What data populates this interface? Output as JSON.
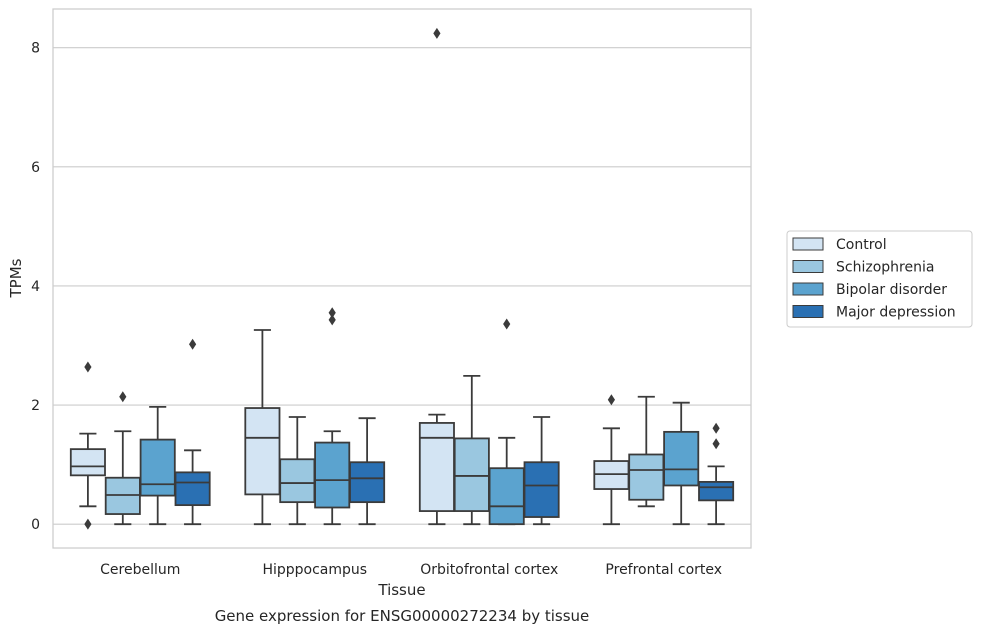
{
  "caption": "Gene expression for ENSG00000272234 by tissue",
  "chart_data": {
    "type": "box",
    "xlabel": "Tissue",
    "ylabel": "TPMs",
    "ylim": [
      -0.4,
      8.65
    ],
    "yticks": [
      0,
      2,
      4,
      6,
      8
    ],
    "grid": "horizontal",
    "legend_position": "right",
    "categories": [
      "Cerebellum",
      "Hipppocampus",
      "Orbitofrontal cortex",
      "Prefrontal cortex"
    ],
    "series": [
      {
        "name": "Control",
        "color": "#d3e4f3",
        "boxes": [
          {
            "whislo": 0.3,
            "q1": 0.82,
            "med": 0.97,
            "q3": 1.26,
            "whishi": 1.52,
            "fliers": [
              2.64,
              0.0
            ]
          },
          {
            "whislo": 0.0,
            "q1": 0.5,
            "med": 1.45,
            "q3": 1.95,
            "whishi": 3.26,
            "fliers": []
          },
          {
            "whislo": 0.0,
            "q1": 0.22,
            "med": 1.45,
            "q3": 1.7,
            "whishi": 1.84,
            "fliers": [
              8.24
            ]
          },
          {
            "whislo": 0.0,
            "q1": 0.59,
            "med": 0.84,
            "q3": 1.06,
            "whishi": 1.61,
            "fliers": [
              2.09
            ]
          }
        ]
      },
      {
        "name": "Schizophrenia",
        "color": "#9ac7e0",
        "boxes": [
          {
            "whislo": 0.0,
            "q1": 0.17,
            "med": 0.49,
            "q3": 0.78,
            "whishi": 1.56,
            "fliers": [
              2.14
            ]
          },
          {
            "whislo": 0.0,
            "q1": 0.37,
            "med": 0.69,
            "q3": 1.09,
            "whishi": 1.8,
            "fliers": []
          },
          {
            "whislo": 0.0,
            "q1": 0.22,
            "med": 0.81,
            "q3": 1.44,
            "whishi": 2.49,
            "fliers": []
          },
          {
            "whislo": 0.3,
            "q1": 0.41,
            "med": 0.91,
            "q3": 1.17,
            "whishi": 2.14,
            "fliers": []
          }
        ]
      },
      {
        "name": "Bipolar disorder",
        "color": "#5ba3cf",
        "boxes": [
          {
            "whislo": 0.0,
            "q1": 0.48,
            "med": 0.67,
            "q3": 1.42,
            "whishi": 1.97,
            "fliers": []
          },
          {
            "whislo": 0.0,
            "q1": 0.28,
            "med": 0.74,
            "q3": 1.37,
            "whishi": 1.56,
            "fliers": [
              3.55,
              3.43
            ]
          },
          {
            "whislo": 0.0,
            "q1": 0.0,
            "med": 0.3,
            "q3": 0.94,
            "whishi": 1.45,
            "fliers": [
              3.36
            ]
          },
          {
            "whislo": 0.0,
            "q1": 0.65,
            "med": 0.92,
            "q3": 1.55,
            "whishi": 2.04,
            "fliers": []
          }
        ]
      },
      {
        "name": "Major depression",
        "color": "#2a70b3",
        "boxes": [
          {
            "whislo": 0.0,
            "q1": 0.32,
            "med": 0.7,
            "q3": 0.87,
            "whishi": 1.24,
            "fliers": [
              3.02
            ]
          },
          {
            "whislo": 0.0,
            "q1": 0.37,
            "med": 0.77,
            "q3": 1.04,
            "whishi": 1.78,
            "fliers": []
          },
          {
            "whislo": 0.0,
            "q1": 0.12,
            "med": 0.65,
            "q3": 1.04,
            "whishi": 1.8,
            "fliers": []
          },
          {
            "whislo": 0.0,
            "q1": 0.4,
            "med": 0.62,
            "q3": 0.71,
            "whishi": 0.97,
            "fliers": [
              1.61,
              1.35
            ]
          }
        ]
      }
    ]
  }
}
